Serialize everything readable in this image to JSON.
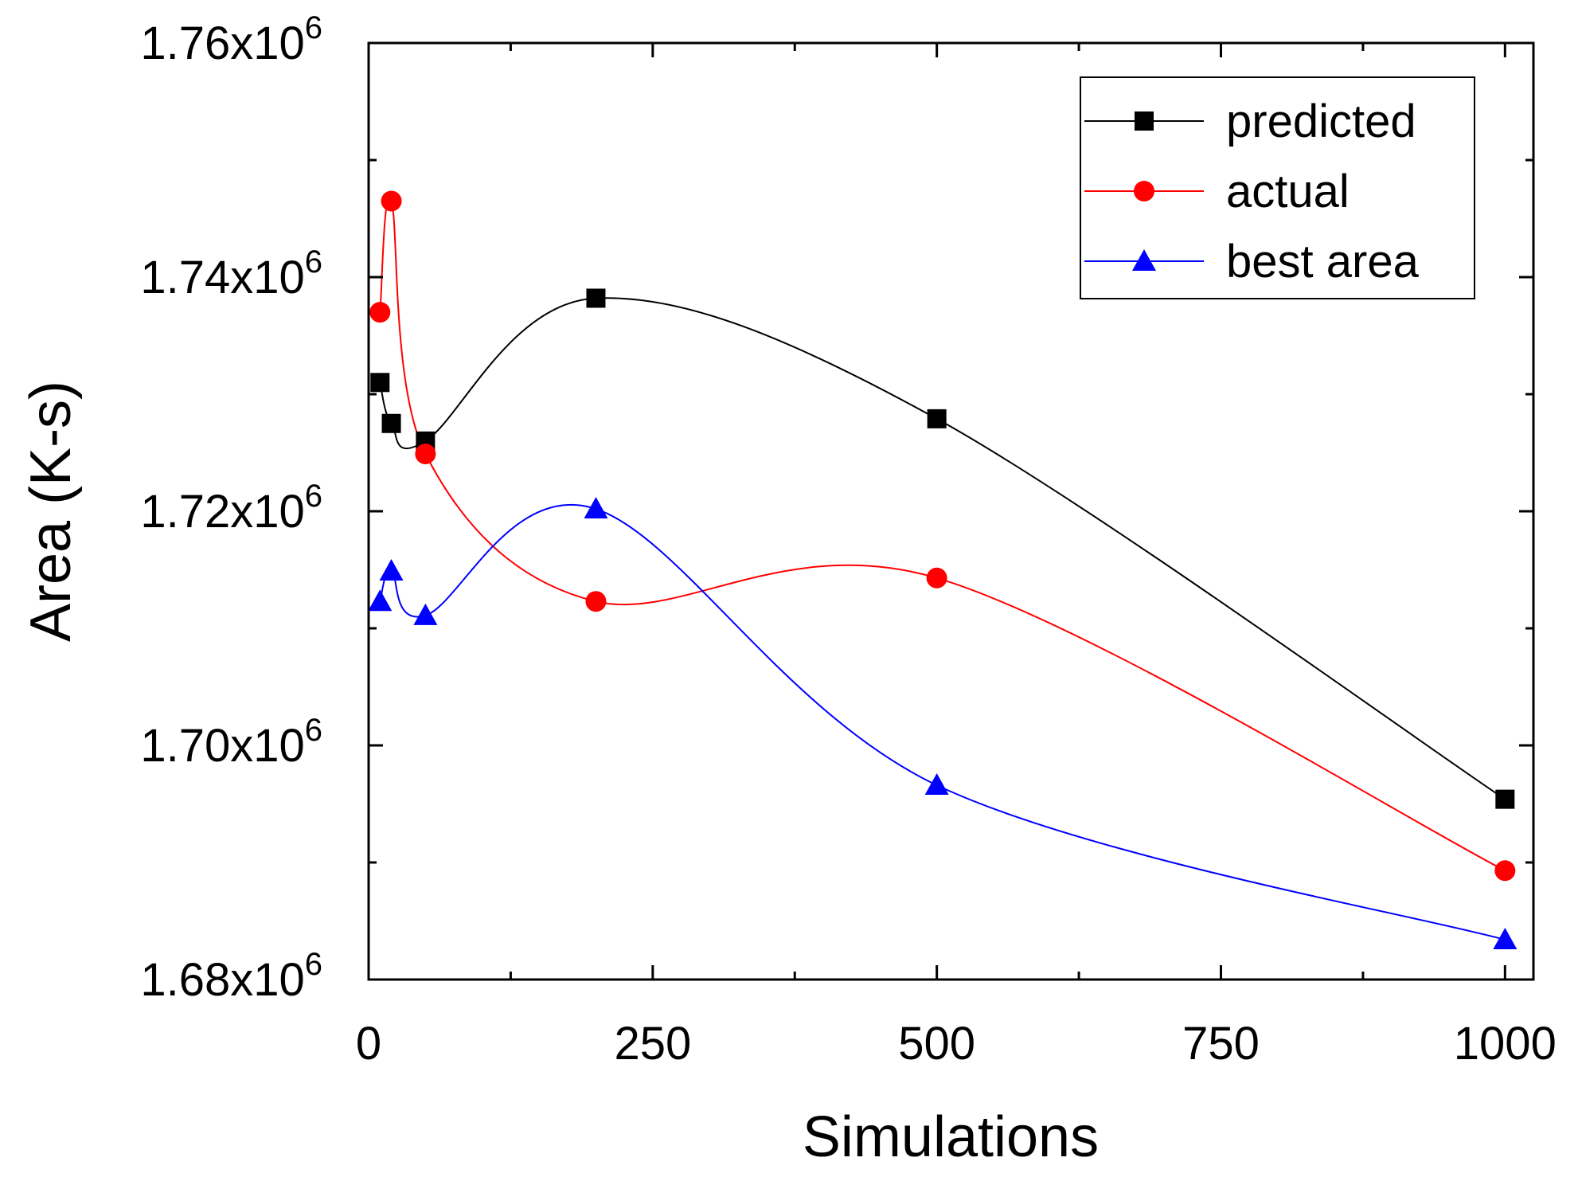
{
  "chart_data": {
    "type": "line",
    "title": "",
    "xlabel": "Simulations",
    "ylabel": "Area (K-s)",
    "xlim": [
      0,
      1025
    ],
    "ylim": [
      1680000,
      1760000
    ],
    "x_ticks": [
      0,
      250,
      500,
      750,
      1000
    ],
    "x_tick_labels": [
      "0",
      "250",
      "500",
      "750",
      "1000"
    ],
    "y_ticks": [
      1680000,
      1700000,
      1720000,
      1740000,
      1760000
    ],
    "y_tick_labels": [
      {
        "mantissa": "1.68x10",
        "exponent": "6"
      },
      {
        "mantissa": "1.70x10",
        "exponent": "6"
      },
      {
        "mantissa": "1.72x10",
        "exponent": "6"
      },
      {
        "mantissa": "1.74x10",
        "exponent": "6"
      },
      {
        "mantissa": "1.76x10",
        "exponent": "6"
      }
    ],
    "grid": false,
    "legend_position": "top-right",
    "series": [
      {
        "name": "predicted",
        "color": "#000000",
        "marker": "square",
        "x": [
          10,
          20,
          50,
          200,
          500,
          1000
        ],
        "y": [
          1731000,
          1727500,
          1726000,
          1738200,
          1727900,
          1695400
        ]
      },
      {
        "name": "actual",
        "color": "#ff0000",
        "marker": "circle",
        "x": [
          10,
          20,
          50,
          200,
          500,
          1000
        ],
        "y": [
          1737000,
          1746500,
          1724900,
          1712300,
          1714300,
          1689300
        ]
      },
      {
        "name": "best area",
        "color": "#0000ff",
        "marker": "triangle",
        "x": [
          10,
          20,
          50,
          200,
          500,
          1000
        ],
        "y": [
          1712300,
          1714900,
          1711100,
          1720200,
          1696600,
          1683400
        ]
      }
    ]
  }
}
